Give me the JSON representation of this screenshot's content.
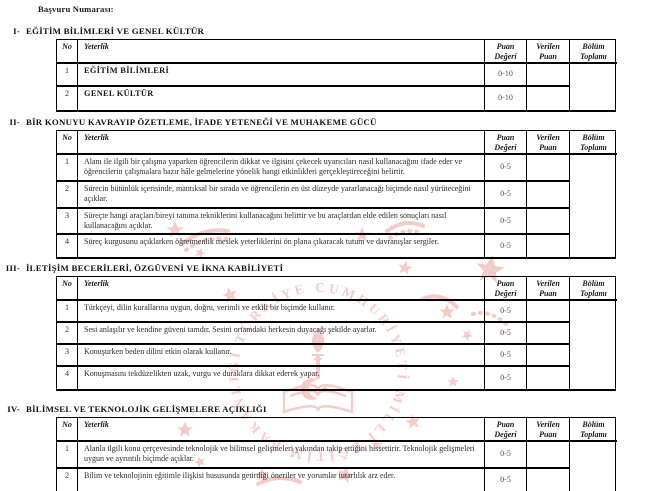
{
  "form": {
    "application_number_label": "Başvuru Numarası:"
  },
  "table": {
    "headers": {
      "no": "No",
      "competency": "Yeterlik",
      "score_range": "Puan Değeri",
      "given_score": "Verilen Puan",
      "section_total": "Bölüm Toplamı"
    }
  },
  "sections": [
    {
      "numeral": "I-",
      "title": "EĞİTİM BİLİMLERİ VE GENEL KÜLTÜR",
      "rows": [
        {
          "no": "1",
          "competency": "EĞİTİM BİLİMLERİ",
          "score_range": "0-10",
          "given_score": ""
        },
        {
          "no": "2",
          "competency": "GENEL KÜLTÜR",
          "score_range": "0-10",
          "given_score": ""
        }
      ],
      "section_total_value": ""
    },
    {
      "numeral": "II-",
      "title": "BİR KONUYU KAVRAYIP ÖZETLEME, İFADE YETENEĞİ VE MUHAKEME GÜCÜ",
      "rows": [
        {
          "no": "1",
          "competency": "Alanı ile ilgili bir çalışma yaparken öğrencilerin dikkat ve ilgisini çekecek uyarıcıları nasıl kullanacağını ifade eder ve öğrencilerin çalışmalara hazır hâle gelmelerine yönelik hangi etkinlikleri gerçekleştireceğini belirtir.",
          "score_range": "0-5",
          "given_score": ""
        },
        {
          "no": "2",
          "competency": "Sürecin bütünlük içerisinde, mantıksal bir sırada ve öğrencilerin en üst düzeyde yararlanacağı biçimde nasıl yürüteceğini açıklar.",
          "score_range": "0-5",
          "given_score": ""
        },
        {
          "no": "3",
          "competency": "Süreçte hangi araçları/bireyi tanıma tekniklerini kullanacağını belirtir ve bu araçlardan elde edilen sonuçları nasıl kullanacağını açıklar.",
          "score_range": "0-5",
          "given_score": ""
        },
        {
          "no": "4",
          "competency": "Süreç kurgusunu açıklarken öğretmenlik meslek yeterliklerini ön plana çıkaracak tutum ve davranışlar sergiler.",
          "score_range": "0-5",
          "given_score": ""
        }
      ],
      "section_total_value": ""
    },
    {
      "numeral": "III-",
      "title": "İLETİŞİM BECERİLERİ, ÖZGÜVENİ VE İKNA KABİLİYETİ",
      "rows": [
        {
          "no": "1",
          "competency": "Türkçeyi, dilin kurallarına uygun, doğru, verimli ve etkili bir biçimde kullanır.",
          "score_range": "0-5",
          "given_score": ""
        },
        {
          "no": "2",
          "competency": "Sesi anlaşılır ve kendine güveni tamdır. Sesini ortamdaki herkesin duyacağı şekilde ayarlar.",
          "score_range": "0-5",
          "given_score": ""
        },
        {
          "no": "3",
          "competency": "Konuşurken beden dilini etkin olarak kullanır.",
          "score_range": "0-5",
          "given_score": ""
        },
        {
          "no": "4",
          "competency": "Konuşmasını tekdüzelikten uzak, vurgu ve duraklara dikkat ederek yapar.",
          "score_range": "0-5",
          "given_score": ""
        }
      ],
      "section_total_value": ""
    },
    {
      "numeral": "IV-",
      "title": "BİLİMSEL VE TEKNOLOJİK GELİŞMELERE AÇIKLIĞI",
      "rows": [
        {
          "no": "1",
          "competency": "Alanla ilgili konu çerçevesinde teknolojik ve bilimsel gelişmeleri yakından takip ettiğini hissettirir. Teknolojik gelişmeleri uygun ve ayrıntılı biçimde açıklar.",
          "score_range": "0-5",
          "given_score": ""
        },
        {
          "no": "2",
          "competency": "Bilim ve teknolojinin eğitimle ilişkisi hususunda getirdiği öneriler ve yorumlar tutarlılık arz eder.",
          "score_range": "0-5",
          "given_score": ""
        }
      ],
      "section_total_value": ""
    }
  ],
  "watermark": {
    "seal_text": "TÜRKİYE CUMHURİYETİ MİLLÎ EĞİTİM BAKANLIĞI",
    "color": "#e8857c"
  }
}
